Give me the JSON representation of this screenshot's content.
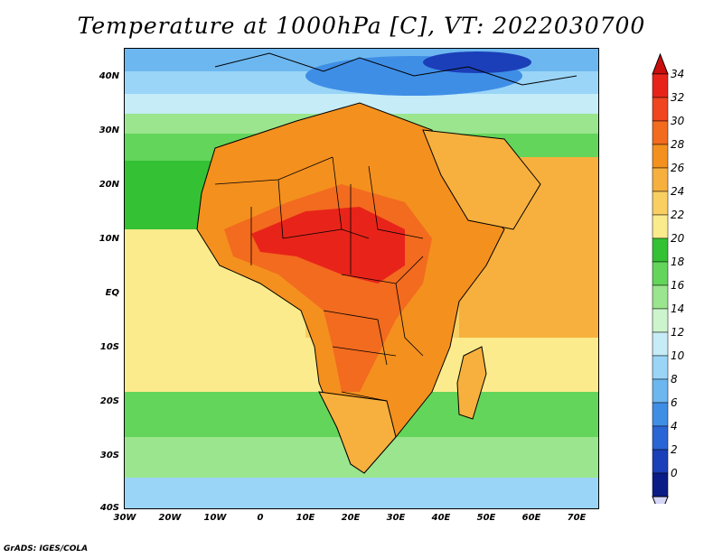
{
  "title": "Temperature at 1000hPa [C], VT: 2022030700",
  "credit": "GrADS: IGES/COLA",
  "map": {
    "lat_labels": [
      "40N",
      "30N",
      "20N",
      "10N",
      "EQ",
      "10S",
      "20S",
      "30S",
      "40S"
    ],
    "lon_labels": [
      "30W",
      "20W",
      "10W",
      "0",
      "10E",
      "20E",
      "30E",
      "40E",
      "50E",
      "60E",
      "70E"
    ]
  },
  "colorbar": {
    "labels": [
      "34",
      "32",
      "30",
      "28",
      "26",
      "24",
      "22",
      "20",
      "18",
      "16",
      "14",
      "12",
      "10",
      "8",
      "6",
      "4",
      "2",
      "0"
    ],
    "colors": [
      "#e8241a",
      "#f0451e",
      "#f26b1f",
      "#f4901e",
      "#f7b03e",
      "#f9cf62",
      "#fbeb8c",
      "#34c234",
      "#63d55b",
      "#9ae58d",
      "#cdf5cd",
      "#c5ecf7",
      "#9ad5f7",
      "#6cb7f0",
      "#3f8ee6",
      "#2a65d6",
      "#1b3fb8",
      "#0a1c85"
    ],
    "under_color": "#d6d6f7",
    "over_color": "#cc0d0d"
  },
  "chart_data": {
    "type": "heatmap",
    "title": "Temperature at 1000hPa [C], VT: 2022030700",
    "variable": "Temperature at 1000hPa",
    "units": "C",
    "valid_time": "2022030700",
    "lon_range": [
      "30W",
      "75E"
    ],
    "lat_range": [
      "40S",
      "45N"
    ],
    "color_levels": [
      0,
      2,
      4,
      6,
      8,
      10,
      12,
      14,
      16,
      18,
      20,
      22,
      24,
      26,
      28,
      30,
      32,
      34
    ]
  }
}
